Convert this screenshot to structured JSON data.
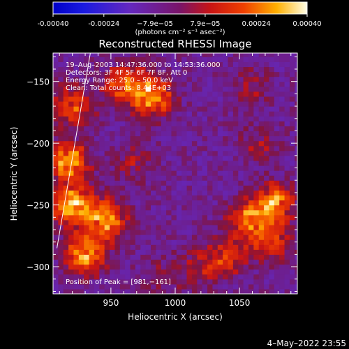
{
  "chart_data": {
    "type": "heatmap",
    "title": "Reconstructed RHESSI Image",
    "xlabel": "Heliocentric X (arcsec)",
    "ylabel": "Heliocentric Y (arcsec)",
    "xlim": [
      905,
      1095
    ],
    "ylim": [
      -322,
      -127
    ],
    "x_ticks": [
      950,
      1000,
      1050
    ],
    "y_ticks": [
      -150,
      -200,
      -250,
      -300
    ],
    "colorbar": {
      "min": -0.0004,
      "max": 0.0004,
      "tick_values": [
        -0.0004,
        -0.00024,
        -7.9e-05,
        7.9e-05,
        0.00024,
        0.0004
      ],
      "tick_labels": [
        "-0.00040",
        "-0.00024",
        "−7.9e−05",
        "7.9e−05",
        "0.00024",
        "0.00040"
      ],
      "unit": "(photons cm⁻² s⁻¹ asec⁻²)"
    },
    "annotations": [
      "19–Aug–2003 14:47:36.000 to 14:53:36.000",
      "Detectors: 3F 4F 5F 6F 7F 8F, Att 0",
      "Energy Range: 25.0 – 50.0 keV",
      "Clean:    Total counts: 8.44E+03"
    ],
    "peak_label": "Position of Peak = [981,−161]",
    "peak": [
      981,
      -161
    ],
    "grid_spacing_arcsec": 4,
    "bright_regions": [
      {
        "x": 920,
        "y": -250,
        "level": 0.0004
      },
      {
        "x": 918,
        "y": -215,
        "level": 0.00036
      },
      {
        "x": 930,
        "y": -290,
        "level": 0.00036
      },
      {
        "x": 947,
        "y": -262,
        "level": 0.00035
      },
      {
        "x": 920,
        "y": -170,
        "level": 0.00026
      },
      {
        "x": 981,
        "y": -161,
        "level": 0.0004
      },
      {
        "x": 958,
        "y": -152,
        "level": 0.00024
      },
      {
        "x": 1077,
        "y": -248,
        "level": 0.00033
      },
      {
        "x": 1058,
        "y": -262,
        "level": 0.00028
      },
      {
        "x": 1040,
        "y": -292,
        "level": 0.0002
      },
      {
        "x": 1075,
        "y": -280,
        "level": 0.00022
      },
      {
        "x": 1020,
        "y": -300,
        "level": 0.00014
      },
      {
        "x": 968,
        "y": -215,
        "level": 0.00011
      },
      {
        "x": 1065,
        "y": -200,
        "level": 0.00011
      },
      {
        "x": 1060,
        "y": -155,
        "level": 0.00012
      },
      {
        "x": 990,
        "y": -308,
        "level": 0.0001
      }
    ],
    "limb_line": [
      [
        934,
        -127
      ],
      [
        908,
        -285
      ]
    ]
  },
  "footer": {
    "timestamp": "4–May–2022 23:55"
  }
}
